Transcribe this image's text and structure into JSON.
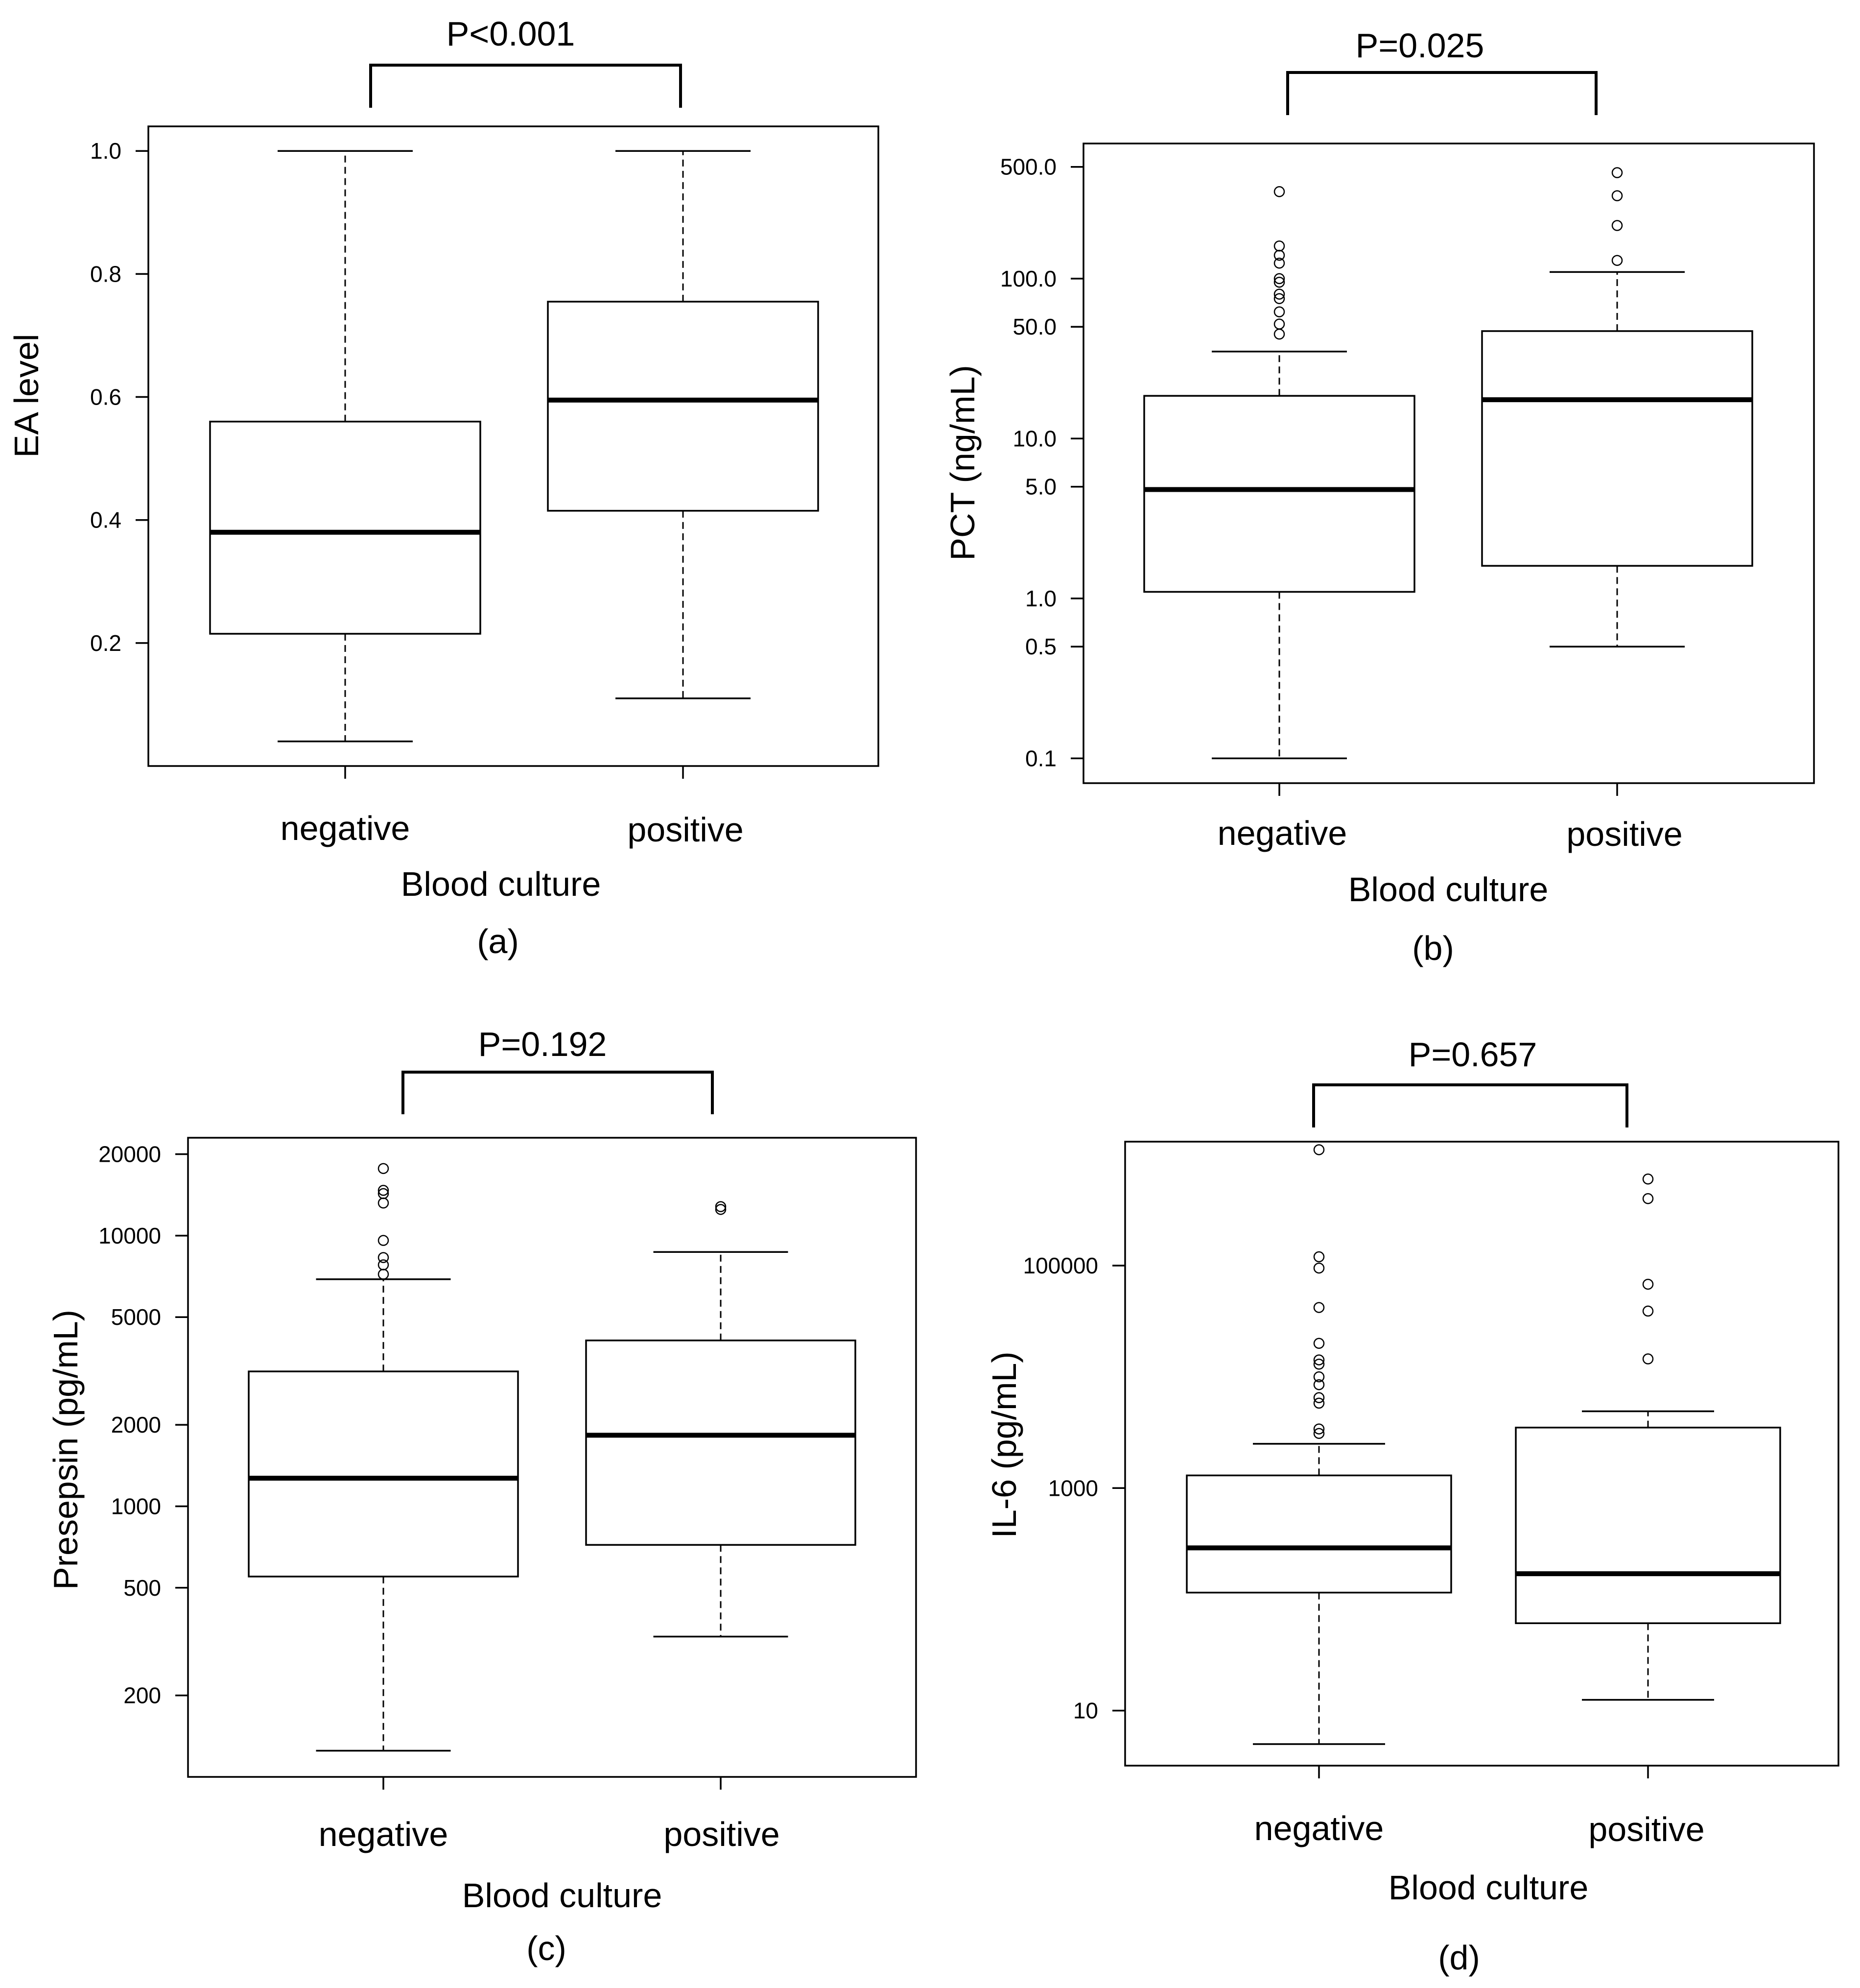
{
  "figure": {
    "panel_labels": [
      "(a)",
      "(b)",
      "(c)",
      "(d)"
    ]
  },
  "chart_data": [
    {
      "type": "boxplot",
      "panel": "(a)",
      "title": "",
      "pvalue": "P<0.001",
      "xlabel": "Blood culture",
      "ylabel": "EA level",
      "scale": "linear",
      "ylim": [
        0.0,
        1.04
      ],
      "yticks": [
        0.2,
        0.4,
        0.6,
        0.8,
        1.0
      ],
      "ytick_labels": [
        "0.2",
        "0.4",
        "0.6",
        "0.8",
        "1.0"
      ],
      "categories": [
        "negative",
        "positive"
      ],
      "boxes": [
        {
          "whisker_low": 0.04,
          "q1": 0.215,
          "median": 0.38,
          "q3": 0.56,
          "whisker_high": 1.0,
          "outliers": []
        },
        {
          "whisker_low": 0.11,
          "q1": 0.415,
          "median": 0.595,
          "q3": 0.755,
          "whisker_high": 1.0,
          "outliers": []
        }
      ]
    },
    {
      "type": "boxplot",
      "panel": "(b)",
      "title": "",
      "pvalue": "P=0.025",
      "xlabel": "Blood culture",
      "ylabel": "PCT (ng/mL)",
      "scale": "log",
      "ylim": [
        0.07,
        700
      ],
      "yticks": [
        0.1,
        0.5,
        1.0,
        5.0,
        10.0,
        50.0,
        100.0,
        500.0
      ],
      "ytick_labels": [
        "0.1",
        "0.5",
        "1.0",
        "5.0",
        "10.0",
        "50.0",
        "100.0",
        "500.0"
      ],
      "categories": [
        "negative",
        "positive"
      ],
      "boxes": [
        {
          "whisker_low": 0.1,
          "q1": 1.1,
          "median": 4.8,
          "q3": 18.5,
          "whisker_high": 35,
          "outliers": [
            45,
            52,
            62,
            75,
            80,
            95,
            100,
            125,
            140,
            160,
            350
          ]
        },
        {
          "whisker_low": 0.5,
          "q1": 1.6,
          "median": 17.5,
          "q3": 47,
          "whisker_high": 110,
          "outliers": [
            130,
            215,
            330,
            460
          ]
        }
      ]
    },
    {
      "type": "boxplot",
      "panel": "(c)",
      "title": "",
      "pvalue": "P=0.192",
      "xlabel": "Blood culture",
      "ylabel": "Presepsin (pg/mL)",
      "scale": "log",
      "ylim": [
        100,
        23000
      ],
      "yticks": [
        200,
        500,
        1000,
        2000,
        5000,
        10000,
        20000
      ],
      "ytick_labels": [
        "200",
        "500",
        "1000",
        "2000",
        "5000",
        "10000",
        "20000"
      ],
      "categories": [
        "negative",
        "positive"
      ],
      "boxes": [
        {
          "whisker_low": 125,
          "q1": 550,
          "median": 1270,
          "q3": 3150,
          "whisker_high": 6900,
          "outliers": [
            7200,
            7800,
            8300,
            9600,
            13200,
            14300,
            14700,
            17700
          ]
        },
        {
          "whisker_low": 330,
          "q1": 720,
          "median": 1830,
          "q3": 4100,
          "whisker_high": 8700,
          "outliers": [
            12500,
            12800
          ]
        }
      ]
    },
    {
      "type": "boxplot",
      "panel": "(d)",
      "title": "",
      "pvalue": "P=0.657",
      "xlabel": "Blood culture",
      "ylabel": "IL-6  (pg/mL)",
      "scale": "log",
      "ylim": [
        3.2,
        1300000
      ],
      "yticks": [
        10,
        1000,
        100000
      ],
      "ytick_labels": [
        "10",
        "1000",
        "100000"
      ],
      "categories": [
        "negative",
        "positive"
      ],
      "boxes": [
        {
          "whisker_low": 5,
          "q1": 115,
          "median": 290,
          "q3": 1300,
          "whisker_high": 2500,
          "outliers": [
            3100,
            3400,
            5800,
            6500,
            8500,
            10000,
            13000,
            14200,
            20000,
            42000,
            95000,
            120000,
            1100000
          ]
        },
        {
          "whisker_low": 12.5,
          "q1": 61,
          "median": 170,
          "q3": 3500,
          "whisker_high": 4900,
          "outliers": [
            14500,
            39000,
            68000,
            400000,
            600000
          ]
        }
      ]
    }
  ]
}
